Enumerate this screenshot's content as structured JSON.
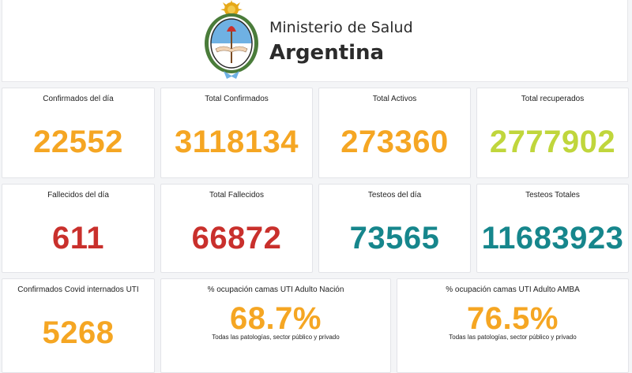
{
  "header": {
    "ministry": "Ministerio de Salud",
    "country": "Argentina",
    "logo_icon": "argentina-coat-of-arms-icon"
  },
  "row1": [
    {
      "label": "Confirmados del día",
      "value": "22552",
      "color": "#f5a623"
    },
    {
      "label": "Total Confirmados",
      "value": "3118134",
      "color": "#f5a623"
    },
    {
      "label": "Total Activos",
      "value": "273360",
      "color": "#f5a623"
    },
    {
      "label": "Total recuperados",
      "value": "2777902",
      "color": "#c0d63c"
    }
  ],
  "row2": [
    {
      "label": "Fallecidos del día",
      "value": "611",
      "color": "#c9302c"
    },
    {
      "label": "Total Fallecidos",
      "value": "66872",
      "color": "#c9302c"
    },
    {
      "label": "Testeos del día",
      "value": "73565",
      "color": "#16868c"
    },
    {
      "label": "Testeos Totales",
      "value": "11683923",
      "color": "#16868c"
    }
  ],
  "row3": [
    {
      "label": "Confirmados Covid internados UTI",
      "value": "5268",
      "color": "#f5a623"
    },
    {
      "label": "% ocupación camas UTI Adulto Nación",
      "value": "68.7%",
      "note": "Todas las patologías, sector público y privado",
      "color": "#f5a623"
    },
    {
      "label": "% ocupación camas UTI Adulto AMBA",
      "value": "76.5%",
      "note": "Todas las patologías, sector público y privado",
      "color": "#f5a623"
    }
  ]
}
